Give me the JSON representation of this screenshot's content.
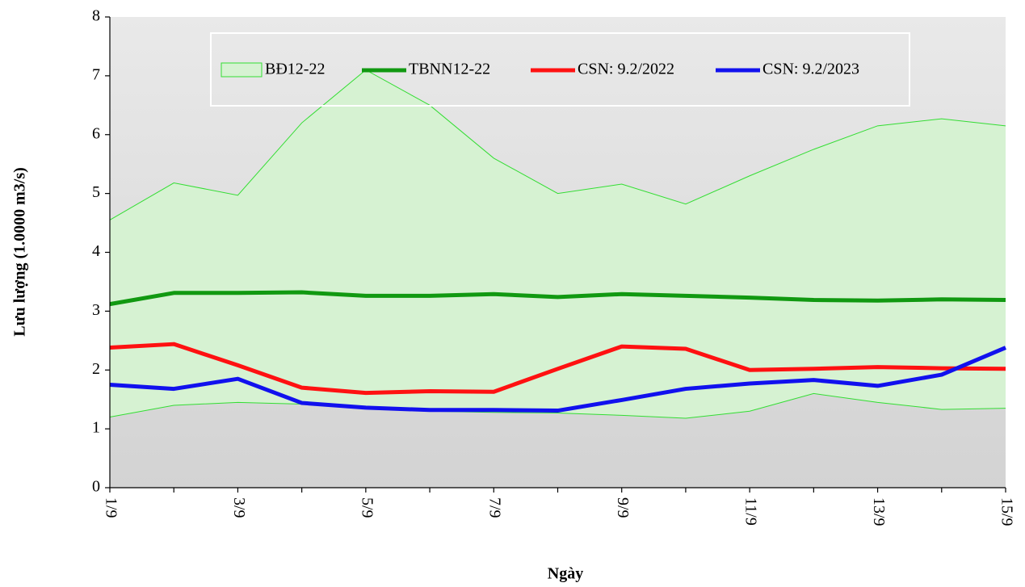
{
  "chart_data": {
    "type": "line",
    "x_label": "Ngày",
    "y_label": "Lưu lượng (1.0000 m3/s)",
    "categories": [
      "1/9",
      null,
      "3/9",
      null,
      "5/9",
      null,
      "7/9",
      null,
      "9/9",
      null,
      "11/9",
      null,
      "13/9",
      null,
      "15/9"
    ],
    "ylim": [
      0,
      8
    ],
    "yticks": [
      0,
      1,
      2,
      3,
      4,
      5,
      6,
      7,
      8
    ],
    "grid": false,
    "legend": "top",
    "band": {
      "name": "BĐ12-22",
      "color": "#33dd33",
      "fill": "#d6f2d2",
      "high": [
        4.55,
        5.18,
        4.97,
        6.2,
        7.1,
        6.5,
        5.6,
        5.0,
        5.16,
        4.82,
        5.3,
        5.75,
        6.15,
        6.27,
        6.15
      ],
      "low": [
        1.2,
        1.4,
        1.45,
        1.42,
        1.35,
        1.3,
        1.28,
        1.27,
        1.23,
        1.18,
        1.3,
        1.6,
        1.45,
        1.33,
        1.35
      ]
    },
    "series": [
      {
        "name": "TBNN12-22",
        "color": "#119911",
        "values": [
          3.12,
          3.31,
          3.31,
          3.32,
          3.26,
          3.26,
          3.29,
          3.24,
          3.29,
          3.26,
          3.23,
          3.19,
          3.18,
          3.2,
          3.19
        ]
      },
      {
        "name": "CSN: 9.2/2022",
        "color": "#ff1111",
        "values": [
          2.38,
          2.44,
          2.08,
          1.7,
          1.61,
          1.64,
          1.63,
          2.02,
          2.4,
          2.36,
          2.0,
          2.02,
          2.05,
          2.03,
          2.02
        ]
      },
      {
        "name": "CSN: 9.2/2023",
        "color": "#1111ee",
        "values": [
          1.75,
          1.68,
          1.85,
          1.44,
          1.36,
          1.32,
          1.32,
          1.31,
          1.49,
          1.68,
          1.77,
          1.83,
          1.73,
          1.92,
          2.38
        ]
      }
    ]
  }
}
